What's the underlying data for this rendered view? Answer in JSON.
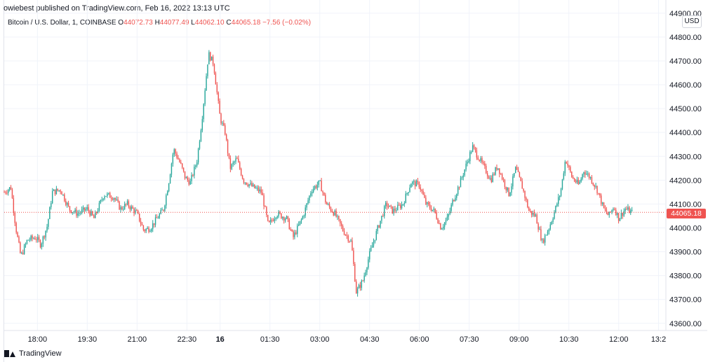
{
  "header": {
    "published": "owiebest published on TradingView.com, Feb 16, 2022 13:13 UTC"
  },
  "legend": {
    "symbol": "Bitcoin / U.S. Dollar, 1, COINBASE",
    "open_label": "O",
    "open": "44072.73",
    "high_label": "H",
    "high": "44077.49",
    "low_label": "L",
    "low": "44062.10",
    "close_label": "C",
    "close": "44065.18",
    "change": "−7.56 (−0.02%)"
  },
  "price_axis": {
    "currency": "USD",
    "last_price_tag": "44065.18"
  },
  "footer": {
    "brand": "TradingView"
  },
  "colors": {
    "up": "#26a69a",
    "down": "#ef5350",
    "grid": "#f0f3fa",
    "last_line": "#ef5350"
  },
  "chart_data": {
    "type": "candlestick",
    "title": "Bitcoin / U.S. Dollar, 1, COINBASE",
    "y_ticks": [
      44900,
      44800,
      44700,
      44600,
      44500,
      44400,
      44300,
      44200,
      44100,
      44000,
      43900,
      43800,
      43700,
      43600
    ],
    "y_tick_labels": [
      "44900.00",
      "44800.00",
      "44700.00",
      "44600.00",
      "44500.00",
      "44400.00",
      "44300.00",
      "44200.00",
      "44100.00",
      "44000.00",
      "43900.00",
      "43800.00",
      "43700.00",
      "43600.00"
    ],
    "ylim": [
      43570,
      44920
    ],
    "x_tick_labels": [
      "18:00",
      "19:30",
      "21:00",
      "22:30",
      "16",
      "01:30",
      "03:00",
      "04:30",
      "06:00",
      "07:30",
      "09:00",
      "10:30",
      "12:00",
      "13:2"
    ],
    "x_tick_positions": [
      1.5,
      3.0,
      4.5,
      6.0,
      7.0,
      8.5,
      10.0,
      11.5,
      13.0,
      14.5,
      16.0,
      17.5,
      19.0,
      20.2
    ],
    "x_range": [
      0.5,
      20.4
    ],
    "last_price": 44065.18,
    "price_path": [
      [
        0.5,
        44150
      ],
      [
        0.7,
        44170
      ],
      [
        0.85,
        44000
      ],
      [
        1.0,
        43880
      ],
      [
        1.2,
        43950
      ],
      [
        1.45,
        43960
      ],
      [
        1.6,
        43930
      ],
      [
        1.8,
        44010
      ],
      [
        1.95,
        44150
      ],
      [
        2.2,
        44160
      ],
      [
        2.45,
        44080
      ],
      [
        2.7,
        44060
      ],
      [
        3.0,
        44080
      ],
      [
        3.2,
        44040
      ],
      [
        3.5,
        44140
      ],
      [
        3.8,
        44130
      ],
      [
        4.0,
        44080
      ],
      [
        4.2,
        44100
      ],
      [
        4.5,
        44060
      ],
      [
        4.7,
        43990
      ],
      [
        4.9,
        44000
      ],
      [
        5.1,
        44040
      ],
      [
        5.3,
        44080
      ],
      [
        5.45,
        44190
      ],
      [
        5.6,
        44330
      ],
      [
        5.8,
        44270
      ],
      [
        5.95,
        44210
      ],
      [
        6.1,
        44190
      ],
      [
        6.3,
        44280
      ],
      [
        6.45,
        44450
      ],
      [
        6.65,
        44730
      ],
      [
        6.8,
        44690
      ],
      [
        7.0,
        44460
      ],
      [
        7.15,
        44400
      ],
      [
        7.3,
        44250
      ],
      [
        7.5,
        44290
      ],
      [
        7.7,
        44200
      ],
      [
        8.0,
        44170
      ],
      [
        8.25,
        44150
      ],
      [
        8.45,
        44010
      ],
      [
        8.7,
        44060
      ],
      [
        9.0,
        44040
      ],
      [
        9.2,
        43960
      ],
      [
        9.5,
        44050
      ],
      [
        9.75,
        44160
      ],
      [
        10.0,
        44190
      ],
      [
        10.2,
        44100
      ],
      [
        10.45,
        44060
      ],
      [
        10.7,
        43990
      ],
      [
        10.95,
        43940
      ],
      [
        11.1,
        43730
      ],
      [
        11.3,
        43780
      ],
      [
        11.5,
        43890
      ],
      [
        11.75,
        44000
      ],
      [
        12.0,
        44100
      ],
      [
        12.2,
        44070
      ],
      [
        12.5,
        44100
      ],
      [
        12.75,
        44190
      ],
      [
        13.0,
        44180
      ],
      [
        13.2,
        44100
      ],
      [
        13.45,
        44070
      ],
      [
        13.65,
        44000
      ],
      [
        13.85,
        44040
      ],
      [
        14.0,
        44110
      ],
      [
        14.2,
        44180
      ],
      [
        14.4,
        44260
      ],
      [
        14.6,
        44340
      ],
      [
        14.8,
        44290
      ],
      [
        15.0,
        44240
      ],
      [
        15.15,
        44200
      ],
      [
        15.35,
        44260
      ],
      [
        15.55,
        44190
      ],
      [
        15.7,
        44140
      ],
      [
        15.9,
        44250
      ],
      [
        16.1,
        44170
      ],
      [
        16.3,
        44070
      ],
      [
        16.5,
        44050
      ],
      [
        16.7,
        43940
      ],
      [
        16.9,
        44000
      ],
      [
        17.05,
        44060
      ],
      [
        17.25,
        44150
      ],
      [
        17.4,
        44290
      ],
      [
        17.6,
        44210
      ],
      [
        17.8,
        44180
      ],
      [
        17.95,
        44240
      ],
      [
        18.15,
        44210
      ],
      [
        18.35,
        44160
      ],
      [
        18.55,
        44080
      ],
      [
        18.7,
        44050
      ],
      [
        18.85,
        44090
      ],
      [
        19.0,
        44040
      ],
      [
        19.2,
        44080
      ],
      [
        19.4,
        44065
      ]
    ]
  }
}
